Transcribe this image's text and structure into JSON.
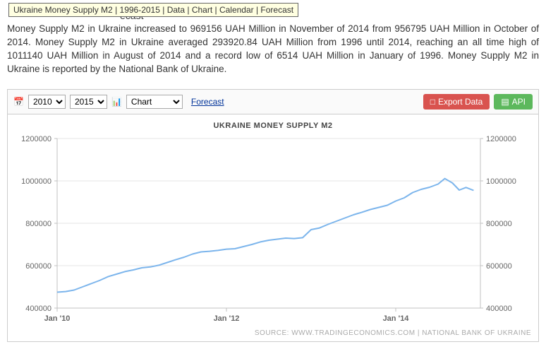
{
  "tooltip": "Ukraine Money Supply M2 | 1996-2015 | Data | Chart | Calendar | Forecast",
  "header_crumb": {
    "data": "Data",
    "chart": "Chart",
    "calendar": "Calendar",
    "forecast": "Forecast",
    "tail": "ecast"
  },
  "paragraph": "Money Supply M2 in Ukraine increased to 969156 UAH Million in November of 2014 from 956795 UAH Million in October of 2014. Money Supply M2 in Ukraine averaged 293920.84 UAH Million from 1996 until 2014, reaching an all time high of 1011140 UAH Million in August of 2014 and a record low of 6514 UAH Million in January of 1996. Money Supply M2 in Ukraine is reported by the National Bank of Ukraine.",
  "toolbar": {
    "from_year": "2010",
    "to_year": "2015",
    "view": "Chart",
    "forecast": "Forecast",
    "export": "Export Data",
    "api": "API"
  },
  "chart": {
    "title": "UKRAINE MONEY SUPPLY M2",
    "source": "SOURCE: WWW.TRADINGECONOMICS.COM   |   NATIONAL BANK OF UKRAINE",
    "ylim": [
      400000,
      1200000
    ],
    "ytick_step": 200000,
    "yticks": [
      "400000",
      "600000",
      "800000",
      "1000000",
      "1200000"
    ],
    "x_start_year": 2010,
    "x_end_year": 2015,
    "xticks": [
      {
        "year": 2010,
        "label": "Jan '10"
      },
      {
        "year": 2012,
        "label": "Jan '12"
      },
      {
        "year": 2014,
        "label": "Jan '14"
      }
    ],
    "line_color": "#7cb5ec",
    "line_width": 2,
    "grid_color": "#e6e6e6",
    "axis_color": "#c0c0c0",
    "tick_font_size": 11,
    "tick_color": "#666666",
    "background_color": "#ffffff",
    "series": [
      {
        "t": 2010.0,
        "v": 475000
      },
      {
        "t": 2010.1,
        "v": 478000
      },
      {
        "t": 2010.2,
        "v": 485000
      },
      {
        "t": 2010.3,
        "v": 500000
      },
      {
        "t": 2010.4,
        "v": 515000
      },
      {
        "t": 2010.5,
        "v": 530000
      },
      {
        "t": 2010.6,
        "v": 548000
      },
      {
        "t": 2010.7,
        "v": 560000
      },
      {
        "t": 2010.8,
        "v": 572000
      },
      {
        "t": 2010.9,
        "v": 580000
      },
      {
        "t": 2011.0,
        "v": 590000
      },
      {
        "t": 2011.1,
        "v": 594000
      },
      {
        "t": 2011.2,
        "v": 602000
      },
      {
        "t": 2011.3,
        "v": 615000
      },
      {
        "t": 2011.4,
        "v": 628000
      },
      {
        "t": 2011.5,
        "v": 640000
      },
      {
        "t": 2011.6,
        "v": 655000
      },
      {
        "t": 2011.7,
        "v": 665000
      },
      {
        "t": 2011.8,
        "v": 668000
      },
      {
        "t": 2011.9,
        "v": 672000
      },
      {
        "t": 2012.0,
        "v": 678000
      },
      {
        "t": 2012.1,
        "v": 680000
      },
      {
        "t": 2012.2,
        "v": 690000
      },
      {
        "t": 2012.3,
        "v": 700000
      },
      {
        "t": 2012.4,
        "v": 712000
      },
      {
        "t": 2012.5,
        "v": 720000
      },
      {
        "t": 2012.6,
        "v": 725000
      },
      {
        "t": 2012.7,
        "v": 730000
      },
      {
        "t": 2012.8,
        "v": 728000
      },
      {
        "t": 2012.9,
        "v": 732000
      },
      {
        "t": 2013.0,
        "v": 770000
      },
      {
        "t": 2013.1,
        "v": 778000
      },
      {
        "t": 2013.2,
        "v": 795000
      },
      {
        "t": 2013.3,
        "v": 810000
      },
      {
        "t": 2013.4,
        "v": 825000
      },
      {
        "t": 2013.5,
        "v": 840000
      },
      {
        "t": 2013.6,
        "v": 852000
      },
      {
        "t": 2013.7,
        "v": 865000
      },
      {
        "t": 2013.8,
        "v": 875000
      },
      {
        "t": 2013.9,
        "v": 885000
      },
      {
        "t": 2014.0,
        "v": 905000
      },
      {
        "t": 2014.1,
        "v": 920000
      },
      {
        "t": 2014.2,
        "v": 945000
      },
      {
        "t": 2014.3,
        "v": 960000
      },
      {
        "t": 2014.4,
        "v": 970000
      },
      {
        "t": 2014.5,
        "v": 985000
      },
      {
        "t": 2014.58,
        "v": 1011140
      },
      {
        "t": 2014.67,
        "v": 990000
      },
      {
        "t": 2014.75,
        "v": 956795
      },
      {
        "t": 2014.83,
        "v": 969156
      },
      {
        "t": 2014.92,
        "v": 955000
      }
    ]
  }
}
